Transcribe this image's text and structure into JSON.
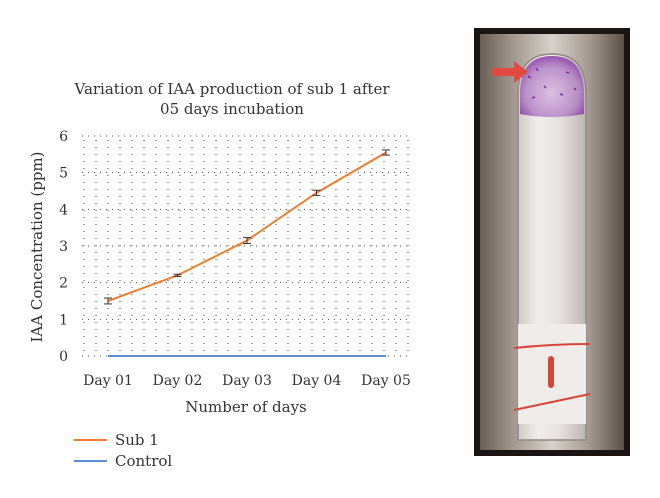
{
  "chart_data": {
    "type": "line",
    "title_lines": [
      "Variation of IAA production of sub 1 after",
      "05 days incubation"
    ],
    "xlabel": "Number of days",
    "ylabel": "IAA Concentration (ppm)",
    "categories": [
      "Day 01",
      "Day 02",
      "Day 03",
      "Day 04",
      "Day 05"
    ],
    "ylim": [
      0,
      6
    ],
    "yticks": [
      "0",
      "1",
      "2",
      "3",
      "4",
      "5",
      "6"
    ],
    "grid": "dotted",
    "legend_position": "bottom-left",
    "series": [
      {
        "name": "Sub 1",
        "color": "#ed7d31",
        "values": [
          1.5,
          2.2,
          3.15,
          4.45,
          5.55
        ],
        "errors": [
          0.08,
          0.03,
          0.08,
          0.07,
          0.07
        ]
      },
      {
        "name": "Control",
        "color": "#5b8fd6",
        "values": [
          0,
          0,
          0,
          0,
          0
        ],
        "errors": [
          0,
          0,
          0,
          0,
          0
        ]
      }
    ]
  },
  "photo": {
    "description_icon": "test-tube-photo",
    "arrow_color": "#e04a3f",
    "stain_color": "#8a3aa8",
    "label_line_color": "#d8453a"
  }
}
